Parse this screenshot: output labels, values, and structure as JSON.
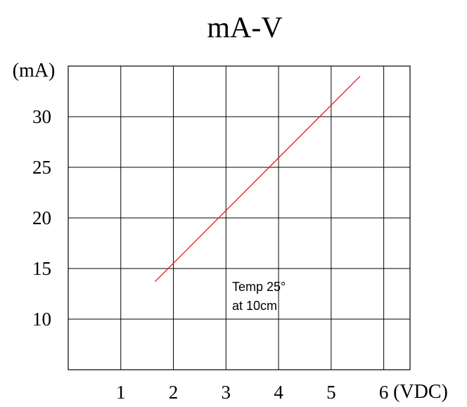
{
  "chart_data": {
    "type": "line",
    "title": "mA-V",
    "xlabel": "(VDC)",
    "ylabel": "(mA)",
    "xlim": [
      0,
      6.5
    ],
    "ylim": [
      5,
      35
    ],
    "x_ticks": [
      1,
      2,
      3,
      4,
      5,
      6
    ],
    "y_ticks": [
      10,
      15,
      20,
      25,
      30
    ],
    "x_tick_labels": [
      "1",
      "2",
      "3",
      "4",
      "5",
      "6"
    ],
    "y_tick_labels": [
      "10",
      "15",
      "20",
      "25",
      "30"
    ],
    "grid": true,
    "series": [
      {
        "x": [
          1.65,
          5.55
        ],
        "y": [
          13.7,
          34.0
        ]
      }
    ],
    "annotation": {
      "lines": [
        "Temp 25°",
        "at 10cm"
      ]
    },
    "colors": {
      "line": "#e8141f",
      "grid": "#000000",
      "text": "#000000"
    }
  }
}
